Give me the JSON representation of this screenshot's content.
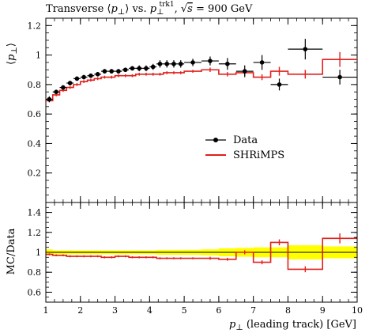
{
  "chart_data": [
    {
      "type": "scatter",
      "title": "Transverse ⟨p⊥⟩ vs. p⊥trk1, √s = 900 GeV",
      "xlabel": "",
      "ylabel": "⟨p⊥⟩",
      "xlim": [
        1,
        10
      ],
      "ylim": [
        0,
        1.25
      ],
      "x_ticks": [
        "1",
        "2",
        "3",
        "4",
        "5",
        "6",
        "7",
        "8",
        "9",
        "10"
      ],
      "y_ticks": [
        "0.2",
        "0.4",
        "0.6",
        "0.8",
        "1",
        "1.2"
      ],
      "legend_position": "center-right",
      "series": [
        {
          "name": "Data",
          "style": "points-with-errorbars",
          "color": "#000000",
          "x": [
            1.1,
            1.3,
            1.5,
            1.7,
            1.9,
            2.1,
            2.3,
            2.5,
            2.7,
            2.9,
            3.1,
            3.3,
            3.5,
            3.7,
            3.9,
            4.1,
            4.3,
            4.5,
            4.7,
            4.9,
            5.25,
            5.75,
            6.25,
            6.75,
            7.25,
            7.75,
            8.5,
            9.5
          ],
          "xerr": [
            0.1,
            0.1,
            0.1,
            0.1,
            0.1,
            0.1,
            0.1,
            0.1,
            0.1,
            0.1,
            0.1,
            0.1,
            0.1,
            0.1,
            0.1,
            0.1,
            0.1,
            0.1,
            0.1,
            0.1,
            0.25,
            0.25,
            0.25,
            0.25,
            0.25,
            0.25,
            0.5,
            0.5
          ],
          "y": [
            0.7,
            0.75,
            0.78,
            0.81,
            0.84,
            0.85,
            0.86,
            0.87,
            0.89,
            0.89,
            0.89,
            0.9,
            0.91,
            0.91,
            0.91,
            0.92,
            0.94,
            0.94,
            0.94,
            0.94,
            0.95,
            0.96,
            0.94,
            0.89,
            0.95,
            0.8,
            1.04,
            0.85
          ],
          "yerr": [
            0.02,
            0.015,
            0.015,
            0.015,
            0.015,
            0.015,
            0.015,
            0.015,
            0.015,
            0.015,
            0.015,
            0.015,
            0.015,
            0.02,
            0.02,
            0.02,
            0.025,
            0.025,
            0.025,
            0.025,
            0.025,
            0.03,
            0.04,
            0.04,
            0.05,
            0.04,
            0.07,
            0.05
          ]
        },
        {
          "name": "SHRiMPS",
          "style": "histogram-step",
          "color": "#e0201b",
          "bin_edges": [
            1.0,
            1.2,
            1.4,
            1.6,
            1.8,
            2.0,
            2.2,
            2.4,
            2.6,
            2.8,
            3.0,
            3.2,
            3.4,
            3.6,
            3.8,
            4.0,
            4.2,
            4.4,
            4.6,
            4.8,
            5.0,
            5.5,
            6.0,
            6.5,
            7.0,
            7.5,
            8.0,
            9.0,
            10.0
          ],
          "y": [
            0.69,
            0.73,
            0.76,
            0.78,
            0.8,
            0.82,
            0.83,
            0.84,
            0.85,
            0.85,
            0.86,
            0.86,
            0.86,
            0.87,
            0.87,
            0.87,
            0.87,
            0.88,
            0.88,
            0.88,
            0.89,
            0.9,
            0.87,
            0.88,
            0.85,
            0.89,
            0.87,
            0.97
          ],
          "yerr": [
            0.01,
            0.01,
            0.01,
            0.01,
            0.01,
            0.01,
            0.01,
            0.01,
            0.01,
            0.01,
            0.01,
            0.01,
            0.01,
            0.01,
            0.01,
            0.01,
            0.01,
            0.01,
            0.01,
            0.01,
            0.01,
            0.015,
            0.015,
            0.02,
            0.02,
            0.03,
            0.03,
            0.05
          ]
        }
      ]
    },
    {
      "type": "line",
      "xlabel": "p⊥ (leading track) [GeV]",
      "ylabel": "MC/Data",
      "xlim": [
        1,
        10
      ],
      "ylim": [
        0.5,
        1.5
      ],
      "x_ticks": [
        "1",
        "2",
        "3",
        "4",
        "5",
        "6",
        "7",
        "8",
        "9",
        "10"
      ],
      "y_ticks": [
        "0.6",
        "0.8",
        "1",
        "1.2",
        "1.4"
      ],
      "reference_line": 1.0,
      "data_uncertainty_band": {
        "color": "#ffff00",
        "bin_edges": [
          1.0,
          1.2,
          1.4,
          1.6,
          1.8,
          2.0,
          2.2,
          2.4,
          2.6,
          2.8,
          3.0,
          3.2,
          3.4,
          3.6,
          3.8,
          4.0,
          4.2,
          4.4,
          4.6,
          4.8,
          5.0,
          5.5,
          6.0,
          6.5,
          7.0,
          7.5,
          8.0,
          9.0,
          10.0
        ],
        "half_width": [
          0.03,
          0.02,
          0.02,
          0.02,
          0.02,
          0.02,
          0.02,
          0.02,
          0.02,
          0.02,
          0.02,
          0.02,
          0.02,
          0.02,
          0.02,
          0.02,
          0.025,
          0.025,
          0.025,
          0.025,
          0.026,
          0.03,
          0.04,
          0.045,
          0.05,
          0.05,
          0.07,
          0.06
        ]
      },
      "series": [
        {
          "name": "SHRiMPS",
          "style": "histogram-step",
          "color": "#e0201b",
          "bin_edges": [
            1.0,
            1.2,
            1.4,
            1.6,
            1.8,
            2.0,
            2.2,
            2.4,
            2.6,
            2.8,
            3.0,
            3.2,
            3.4,
            3.6,
            3.8,
            4.0,
            4.2,
            4.4,
            4.6,
            4.8,
            5.0,
            5.5,
            6.0,
            6.5,
            7.0,
            7.5,
            8.0,
            9.0,
            10.0
          ],
          "y": [
            0.98,
            0.97,
            0.97,
            0.96,
            0.96,
            0.96,
            0.96,
            0.96,
            0.95,
            0.95,
            0.96,
            0.96,
            0.95,
            0.95,
            0.95,
            0.95,
            0.94,
            0.94,
            0.94,
            0.94,
            0.94,
            0.94,
            0.93,
            1.0,
            0.9,
            1.1,
            0.83,
            1.14
          ],
          "yerr": [
            0.01,
            0.01,
            0.01,
            0.01,
            0.01,
            0.01,
            0.01,
            0.01,
            0.01,
            0.01,
            0.01,
            0.01,
            0.01,
            0.01,
            0.01,
            0.01,
            0.01,
            0.01,
            0.01,
            0.01,
            0.01,
            0.015,
            0.015,
            0.02,
            0.02,
            0.03,
            0.03,
            0.05
          ]
        }
      ]
    }
  ]
}
